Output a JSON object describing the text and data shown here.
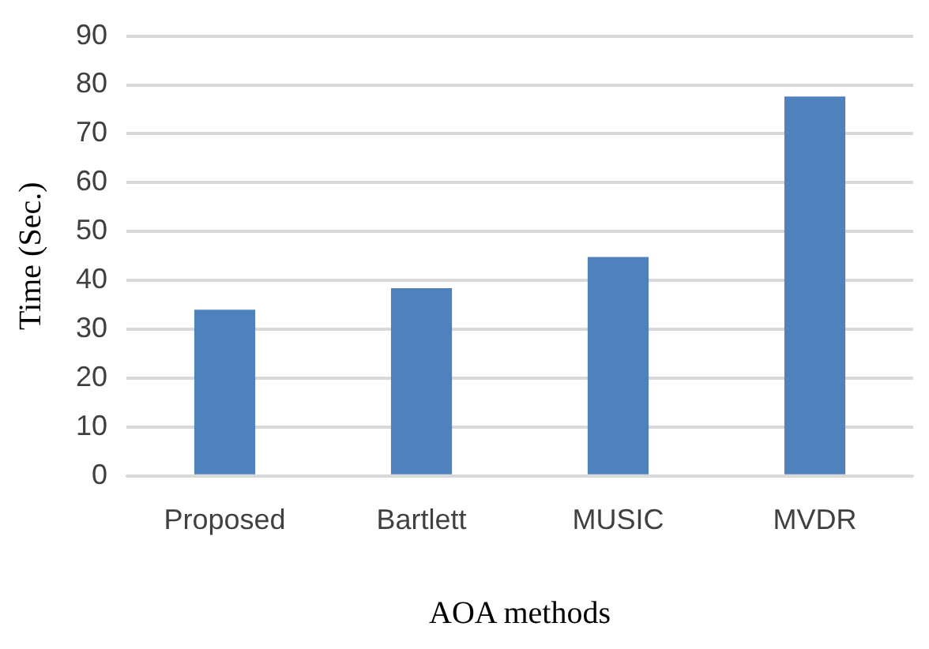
{
  "chart_data": {
    "type": "bar",
    "xlabel": "AOA methods",
    "ylabel": "Time (Sec.)",
    "categories": [
      "Proposed",
      "Bartlett",
      "MUSIC",
      "MVDR"
    ],
    "values": [
      34,
      38.4,
      44.8,
      77.6
    ],
    "color": "#4f81bd",
    "ylim": [
      0,
      90
    ],
    "yticks": [
      0,
      10,
      20,
      30,
      40,
      50,
      60,
      70,
      80,
      90
    ],
    "grid": "y"
  }
}
